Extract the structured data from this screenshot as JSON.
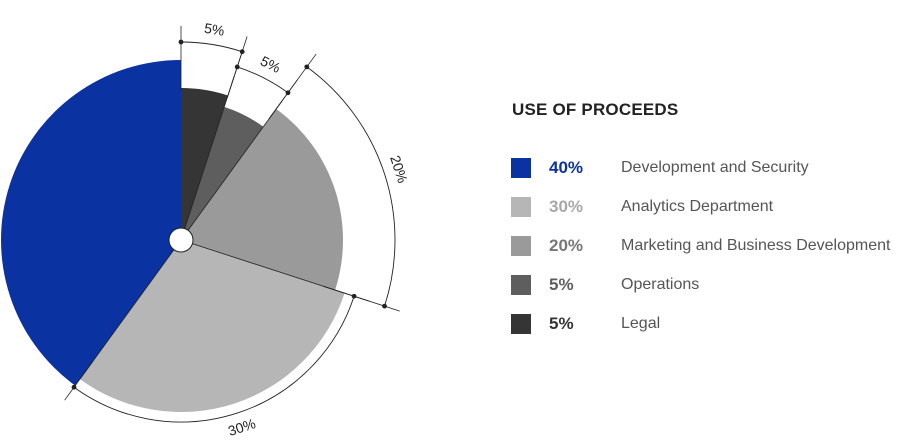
{
  "chart_data": {
    "type": "pie",
    "title": "USE OF PROCEEDS",
    "series": [
      {
        "name": "Development and Security",
        "value": 40,
        "label": "40%",
        "color": "#0a32a0",
        "label_color": "#0a32a0"
      },
      {
        "name": "Analytics Department",
        "value": 30,
        "label": "30%",
        "color": "#b6b6b6",
        "label_color": "#a8a8a8"
      },
      {
        "name": "Marketing and Business Development",
        "value": 20,
        "label": "20%",
        "color": "#9a9a9a",
        "label_color": "#777777"
      },
      {
        "name": "Operations",
        "value": 5,
        "label": "5%",
        "color": "#5e5e5e",
        "label_color": "#5e5e5e"
      },
      {
        "name": "Legal",
        "value": 5,
        "label": "5%",
        "color": "#353535",
        "label_color": "#333333"
      }
    ],
    "slice_order_clockwise_from_top": [
      "Legal",
      "Operations",
      "Marketing and Business Development",
      "Analytics Department",
      "Development and Security"
    ],
    "dimension_labels": [
      "5%",
      "5%",
      "20%",
      "30%"
    ],
    "legend_position": "right"
  }
}
